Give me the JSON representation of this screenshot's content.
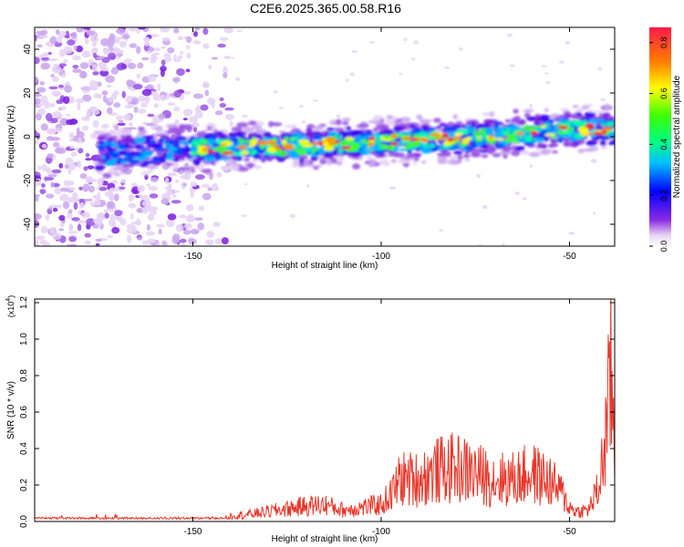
{
  "title": "C2E6.2025.365.00.58.R16",
  "chart_data": [
    {
      "type": "heatmap",
      "title": "C2E6.2025.365.00.58.R16",
      "xlabel": "Height of straight line (km)",
      "ylabel": "Frequency (Hz)",
      "xlim": [
        -192,
        -38
      ],
      "ylim": [
        -50,
        50
      ],
      "x_ticks": [
        -150,
        -100,
        -50
      ],
      "x_tick_labels": [
        "-150",
        "-100",
        "-50"
      ],
      "y_ticks": [
        -40,
        -20,
        0,
        20,
        40
      ],
      "y_tick_labels": [
        "-40",
        "-20",
        "0",
        "20",
        "40"
      ],
      "ridge": {
        "description": "main signal band",
        "points": [
          {
            "x": -180,
            "y": -8
          },
          {
            "x": -160,
            "y": -6
          },
          {
            "x": -140,
            "y": -5
          },
          {
            "x": -120,
            "y": -4
          },
          {
            "x": -100,
            "y": -2
          },
          {
            "x": -80,
            "y": -1
          },
          {
            "x": -60,
            "y": 2
          },
          {
            "x": -40,
            "y": 4
          }
        ]
      },
      "colorbar": {
        "label": "Normalized spectral amplitude",
        "range": [
          0,
          0.86
        ],
        "ticks": [
          0.0,
          0.2,
          0.4,
          0.6,
          0.8
        ],
        "tick_labels": [
          "0.0",
          "0.2",
          "0.4",
          "0.6",
          "0.8"
        ]
      }
    },
    {
      "type": "line",
      "xlabel": "Height of straight line (km)",
      "ylabel": "SNR (10 * v/v)",
      "multiplier_label": "(x10",
      "multiplier_exp": "4",
      "xlim": [
        -192,
        -38
      ],
      "ylim": [
        0,
        1.22
      ],
      "x_ticks": [
        -150,
        -100,
        -50
      ],
      "x_tick_labels": [
        "-150",
        "-100",
        "-50"
      ],
      "y_ticks": [
        0.0,
        0.2,
        0.4,
        0.6,
        0.8,
        1.0,
        1.2
      ],
      "y_tick_labels": [
        "0.0",
        "0.2",
        "0.4",
        "0.6",
        "0.8",
        "1.0",
        "1.2"
      ],
      "series": [
        {
          "name": "SNR",
          "color": "#e8372a",
          "x": [
            -192,
            -180,
            -170,
            -160,
            -150,
            -140,
            -135,
            -130,
            -125,
            -120,
            -115,
            -110,
            -105,
            -100,
            -97,
            -95,
            -90,
            -85,
            -80,
            -75,
            -70,
            -65,
            -60,
            -55,
            -52,
            -50,
            -48,
            -45,
            -42,
            -40,
            -39,
            -38
          ],
          "y": [
            0.02,
            0.02,
            0.025,
            0.03,
            0.03,
            0.04,
            0.05,
            0.07,
            0.09,
            0.11,
            0.12,
            0.08,
            0.1,
            0.12,
            0.2,
            0.3,
            0.3,
            0.36,
            0.38,
            0.34,
            0.3,
            0.3,
            0.34,
            0.28,
            0.2,
            0.1,
            0.07,
            0.08,
            0.25,
            0.7,
            1.05,
            0.5
          ]
        }
      ]
    }
  ]
}
